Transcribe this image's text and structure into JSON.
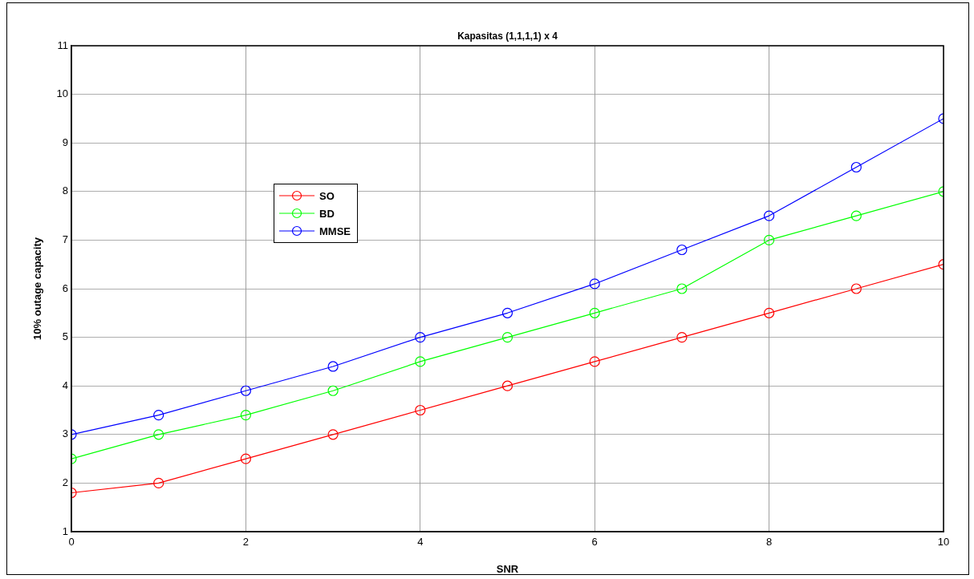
{
  "chart_data": {
    "type": "line",
    "title": "Kapasitas (1,1,1,1) x 4",
    "xlabel": "SNR",
    "ylabel": "10% outage capacity",
    "x": [
      0,
      1,
      2,
      3,
      4,
      5,
      6,
      7,
      8,
      9,
      10
    ],
    "series": [
      {
        "name": "SO",
        "color": "#ff0000",
        "values": [
          1.8,
          2.0,
          2.5,
          3.0,
          3.5,
          4.0,
          4.5,
          5.0,
          5.5,
          6.0,
          6.5
        ]
      },
      {
        "name": "BD",
        "color": "#00ff00",
        "values": [
          2.5,
          3.0,
          3.4,
          3.9,
          4.5,
          5.0,
          5.5,
          6.0,
          7.0,
          7.5,
          8.0
        ]
      },
      {
        "name": "MMSE",
        "color": "#0000ff",
        "values": [
          3.0,
          3.4,
          3.9,
          4.4,
          5.0,
          5.5,
          6.1,
          6.8,
          7.5,
          8.5,
          9.5
        ]
      }
    ],
    "xlim": [
      0,
      10
    ],
    "xticks": [
      0,
      2,
      4,
      6,
      8,
      10
    ],
    "ylim": [
      1,
      11
    ],
    "yticks": [
      1,
      2,
      3,
      4,
      5,
      6,
      7,
      8,
      9,
      10,
      11
    ],
    "grid": true,
    "legend": "top left",
    "marker": "circle",
    "line_style": "solid"
  }
}
